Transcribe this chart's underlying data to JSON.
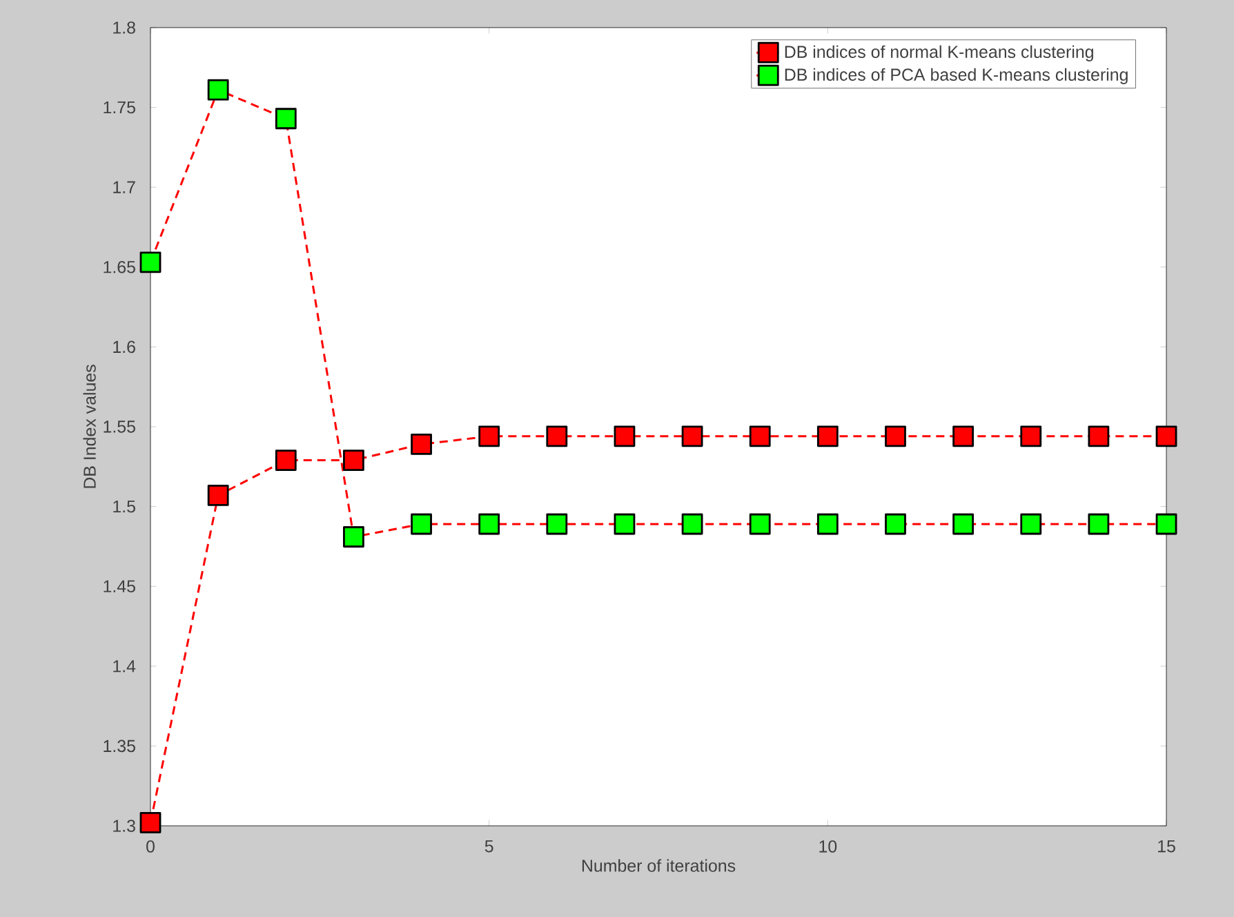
{
  "chart_data": {
    "type": "line",
    "xlabel": "Number of iterations",
    "ylabel": "DB Index values",
    "x": [
      0,
      1,
      2,
      3,
      4,
      5,
      6,
      7,
      8,
      9,
      10,
      11,
      12,
      13,
      14,
      15
    ],
    "series": [
      {
        "name": "DB indices of normal K-means clustering",
        "color": "#ff0000",
        "values": [
          1.302,
          1.507,
          1.529,
          1.529,
          1.539,
          1.544,
          1.544,
          1.544,
          1.544,
          1.544,
          1.544,
          1.544,
          1.544,
          1.544,
          1.544,
          1.544
        ]
      },
      {
        "name": "DB indices of PCA based K-means clustering",
        "color": "#00ff00",
        "values": [
          1.653,
          1.761,
          1.743,
          1.481,
          1.489,
          1.489,
          1.489,
          1.489,
          1.489,
          1.489,
          1.489,
          1.489,
          1.489,
          1.489,
          1.489,
          1.489
        ]
      }
    ],
    "xlim": [
      0,
      15
    ],
    "xticks": [
      0,
      5,
      10,
      15
    ],
    "ylim": [
      1.3,
      1.8
    ],
    "yticks": [
      1.3,
      1.35,
      1.4,
      1.45,
      1.5,
      1.55,
      1.6,
      1.65,
      1.7,
      1.75,
      1.8
    ],
    "marker": "square",
    "line_style": "dashed",
    "legend": "top right",
    "grid": false
  }
}
